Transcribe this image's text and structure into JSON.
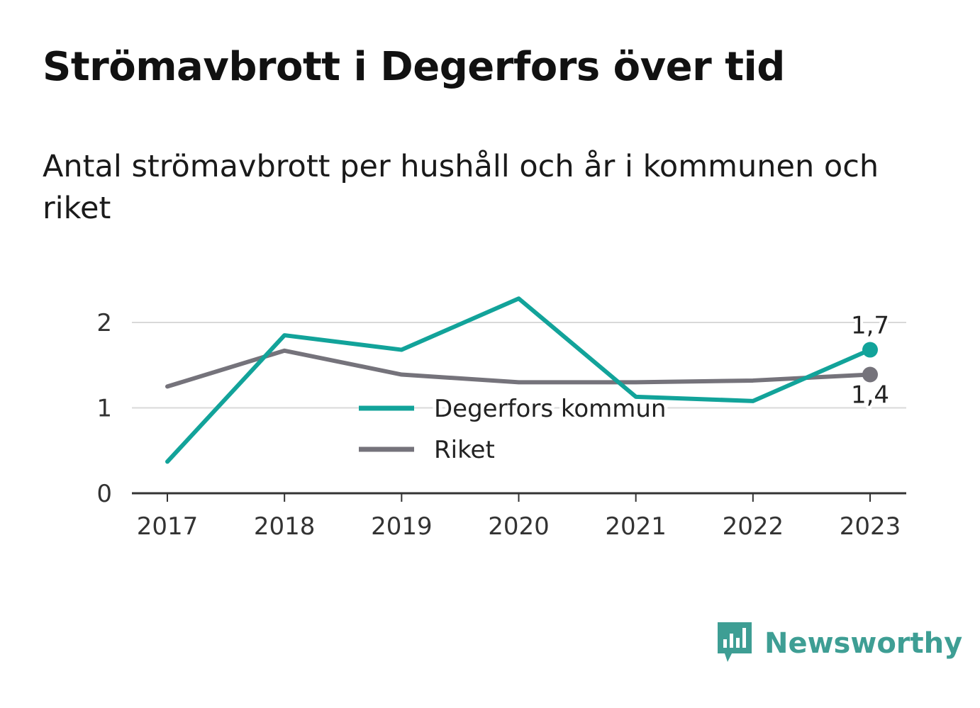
{
  "header": {
    "title": "Strömavbrott i Degerfors över tid",
    "subtitle": "Antal strömavbrott per hushåll och år i kommunen och riket"
  },
  "brand": {
    "name": "Newsworthy",
    "icon": "newsworthy-logo-icon",
    "color": "#3e9e94"
  },
  "chart_data": {
    "type": "line",
    "title": "Strömavbrott i Degerfors över tid",
    "subtitle": "Antal strömavbrott per hushåll och år i kommunen och riket",
    "categories": [
      "2017",
      "2018",
      "2019",
      "2020",
      "2021",
      "2022",
      "2023"
    ],
    "y_ticks": [
      "0",
      "1",
      "2"
    ],
    "ylim": [
      0,
      2.4
    ],
    "grid": "horizontal",
    "legend_position": "center",
    "series": [
      {
        "name": "Degerfors kommun",
        "color": "#12a39a",
        "values": [
          0.37,
          1.85,
          1.68,
          2.28,
          1.13,
          1.08,
          1.68
        ],
        "end_label": "1,7"
      },
      {
        "name": "Riket",
        "color": "#75737b",
        "values": [
          1.25,
          1.67,
          1.39,
          1.3,
          1.3,
          1.32,
          1.39
        ],
        "end_label": "1,4"
      }
    ]
  }
}
